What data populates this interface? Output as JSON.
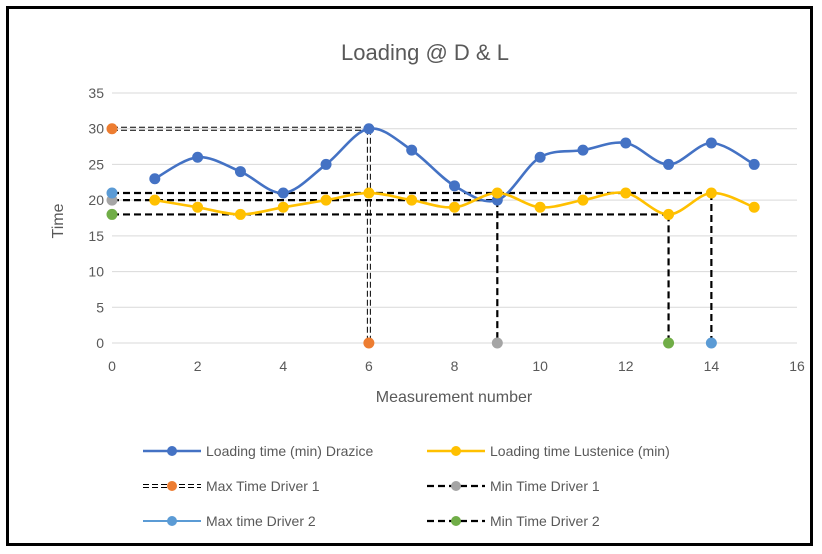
{
  "chart_data": {
    "type": "line",
    "title": "Loading @ D & L",
    "xlabel": "Measurement number",
    "ylabel": "Time",
    "xlim": [
      0,
      16
    ],
    "ylim": [
      0,
      35
    ],
    "x_ticks": [
      0,
      2,
      4,
      6,
      8,
      10,
      12,
      14,
      16
    ],
    "y_ticks": [
      0,
      5,
      10,
      15,
      20,
      25,
      30,
      35
    ],
    "grid": true,
    "legend_position": "bottom",
    "series": [
      {
        "name": "Loading time (min) Drazice",
        "color": "#4472C4",
        "style": "smooth-line-markers",
        "x": [
          1,
          2,
          3,
          4,
          5,
          6,
          7,
          8,
          9,
          10,
          11,
          12,
          13,
          14,
          15
        ],
        "y": [
          23,
          26,
          24,
          21,
          25,
          30,
          27,
          22,
          20,
          26,
          27,
          28,
          25,
          28,
          25
        ]
      },
      {
        "name": "Loading time Lustenice (min)",
        "color": "#FFC000",
        "style": "smooth-line-markers",
        "x": [
          1,
          2,
          3,
          4,
          5,
          6,
          7,
          8,
          9,
          10,
          11,
          12,
          13,
          14,
          15
        ],
        "y": [
          20,
          19,
          18,
          19,
          20,
          21,
          20,
          19,
          21,
          19,
          20,
          21,
          18,
          21,
          19
        ]
      },
      {
        "name": "Max Time Driver 1",
        "color": "#ED7D31",
        "style": "double-dash-markers",
        "x": [
          0,
          6,
          6
        ],
        "y": [
          30,
          30,
          0
        ]
      },
      {
        "name": "Min Time Driver 1",
        "color": "#A5A5A5",
        "style": "dash-markers",
        "x": [
          0,
          9,
          9
        ],
        "y": [
          20,
          20,
          0
        ]
      },
      {
        "name": "Max time Driver 2",
        "color": "#5B9BD5",
        "style": "dash-markers",
        "x": [
          0,
          14,
          14
        ],
        "y": [
          21,
          21,
          0
        ]
      },
      {
        "name": "Min Time Driver 2",
        "color": "#70AD47",
        "style": "dash-markers",
        "x": [
          0,
          13,
          13
        ],
        "y": [
          18,
          18,
          0
        ]
      }
    ]
  }
}
